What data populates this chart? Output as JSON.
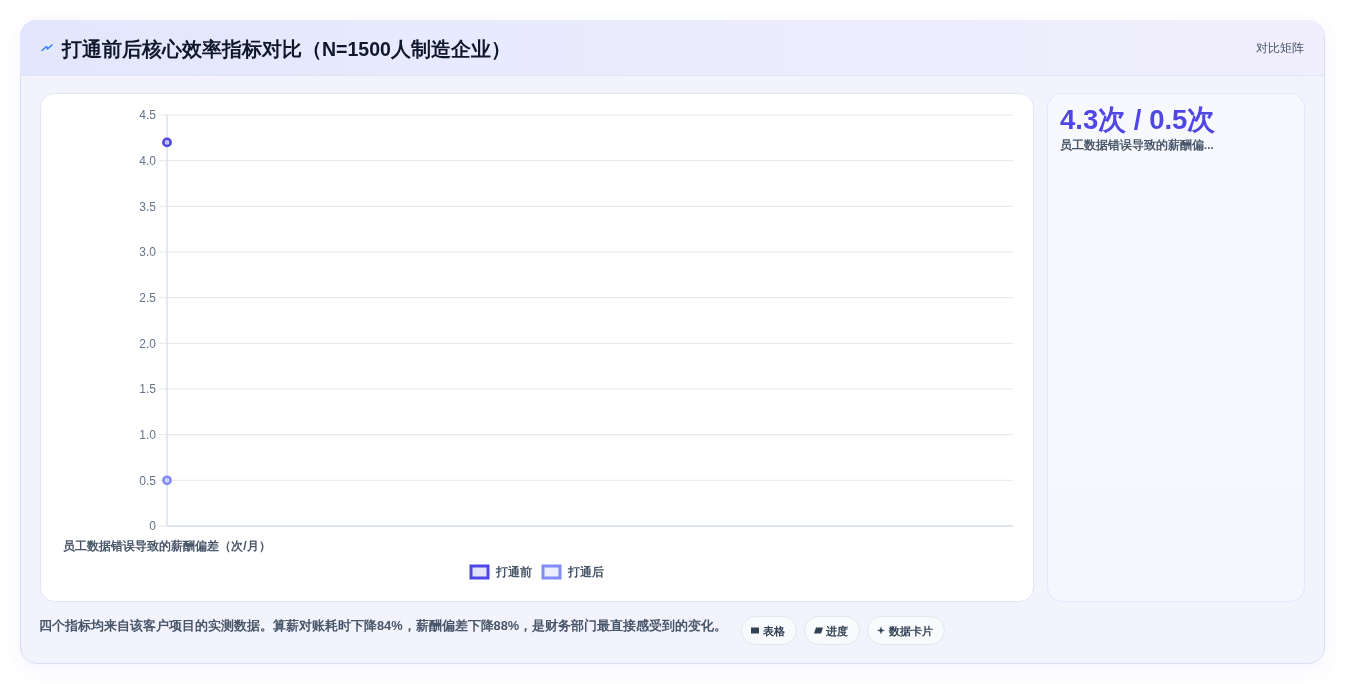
{
  "chart_data": [
    {
      "type": "line",
      "title": "打通前后核心效率指标对比（N=1500人制造企业）",
      "categories": [
        "员工数据错误导致的薪酬偏差（次/月）"
      ],
      "series": [
        {
          "name": "打通前",
          "color": "#4f46e5",
          "values": [
            4.2
          ]
        },
        {
          "name": "打通后",
          "color": "#818cf8",
          "values": [
            0.5
          ]
        }
      ],
      "ylim": [
        0,
        4.5
      ],
      "yticks": [
        0,
        0.5,
        {
          "value": 1,
          "label": "1.0"
        },
        1.5,
        {
          "value": 2,
          "label": "2.0"
        },
        2.5,
        {
          "value": 3,
          "label": "3.0"
        },
        3.5,
        {
          "value": 4,
          "label": "4.0"
        },
        4.5
      ],
      "grid": "y",
      "legend": "bottom",
      "marker": "circle",
      "annotations": [
        "对比矩阵",
        "四个指标均来自该客户项目的实测数据。算薪对账耗时下降84%，薪酬偏差下降88%，是财务部门最直接感受到的变化。",
        "表格",
        "进度",
        "数据卡片"
      ]
    },
    {
      "type": "other",
      "title": "4.3次 / 0.5次",
      "subtitle": "员工数据错误导致的薪酬偏..."
    }
  ]
}
